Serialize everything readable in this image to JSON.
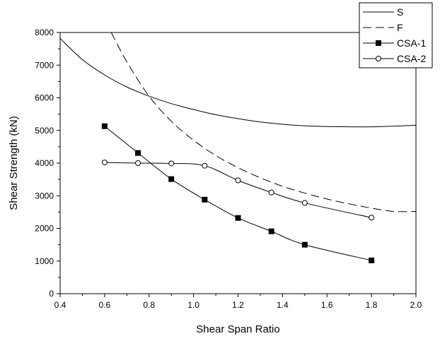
{
  "chart_data": {
    "type": "line",
    "title": "",
    "xlabel": "Shear Span Ratio",
    "ylabel": "Shear Strength (kN)",
    "xlim": [
      0.4,
      2.0
    ],
    "ylim": [
      0,
      8000
    ],
    "xticks": [
      "0.4",
      "0.6",
      "0.8",
      "1.0",
      "1.2",
      "1.4",
      "1.6",
      "1.8",
      "2.0"
    ],
    "yticks": [
      "0",
      "1000",
      "2000",
      "3000",
      "4000",
      "5000",
      "6000",
      "7000",
      "8000"
    ],
    "grid": false,
    "legend_position": "top-right",
    "series": [
      {
        "name": "S",
        "style": "solid",
        "marker": "none",
        "color": "#000000",
        "x": [
          0.4,
          0.5,
          0.6,
          0.7,
          0.8,
          0.9,
          1.0,
          1.1,
          1.2,
          1.3,
          1.4,
          1.5,
          1.6,
          1.7,
          1.8,
          1.9,
          2.0
        ],
        "y": [
          7820,
          7170,
          6700,
          6330,
          6050,
          5820,
          5640,
          5480,
          5360,
          5260,
          5190,
          5140,
          5120,
          5110,
          5110,
          5130,
          5160
        ]
      },
      {
        "name": "F",
        "style": "dashed",
        "marker": "none",
        "color": "#000000",
        "x": [
          0.63,
          0.7,
          0.8,
          0.9,
          1.0,
          1.1,
          1.2,
          1.3,
          1.4,
          1.5,
          1.6,
          1.7,
          1.8,
          1.9,
          2.0
        ],
        "y": [
          8000,
          7100,
          6050,
          5280,
          4700,
          4230,
          3860,
          3550,
          3290,
          3080,
          2900,
          2750,
          2620,
          2520,
          2520
        ]
      },
      {
        "name": "CSA-1",
        "style": "solid",
        "marker": "filled-square",
        "color": "#000000",
        "x": [
          0.6,
          0.75,
          0.9,
          1.05,
          1.2,
          1.35,
          1.5,
          1.8
        ],
        "y": [
          5130,
          4310,
          3510,
          2880,
          2320,
          1910,
          1500,
          1020
        ]
      },
      {
        "name": "CSA-2",
        "style": "solid",
        "marker": "open-circle",
        "color": "#000000",
        "x": [
          0.6,
          0.75,
          0.9,
          1.05,
          1.2,
          1.35,
          1.5,
          1.8
        ],
        "y": [
          4020,
          4000,
          3990,
          3920,
          3470,
          3100,
          2780,
          2330
        ]
      }
    ]
  }
}
